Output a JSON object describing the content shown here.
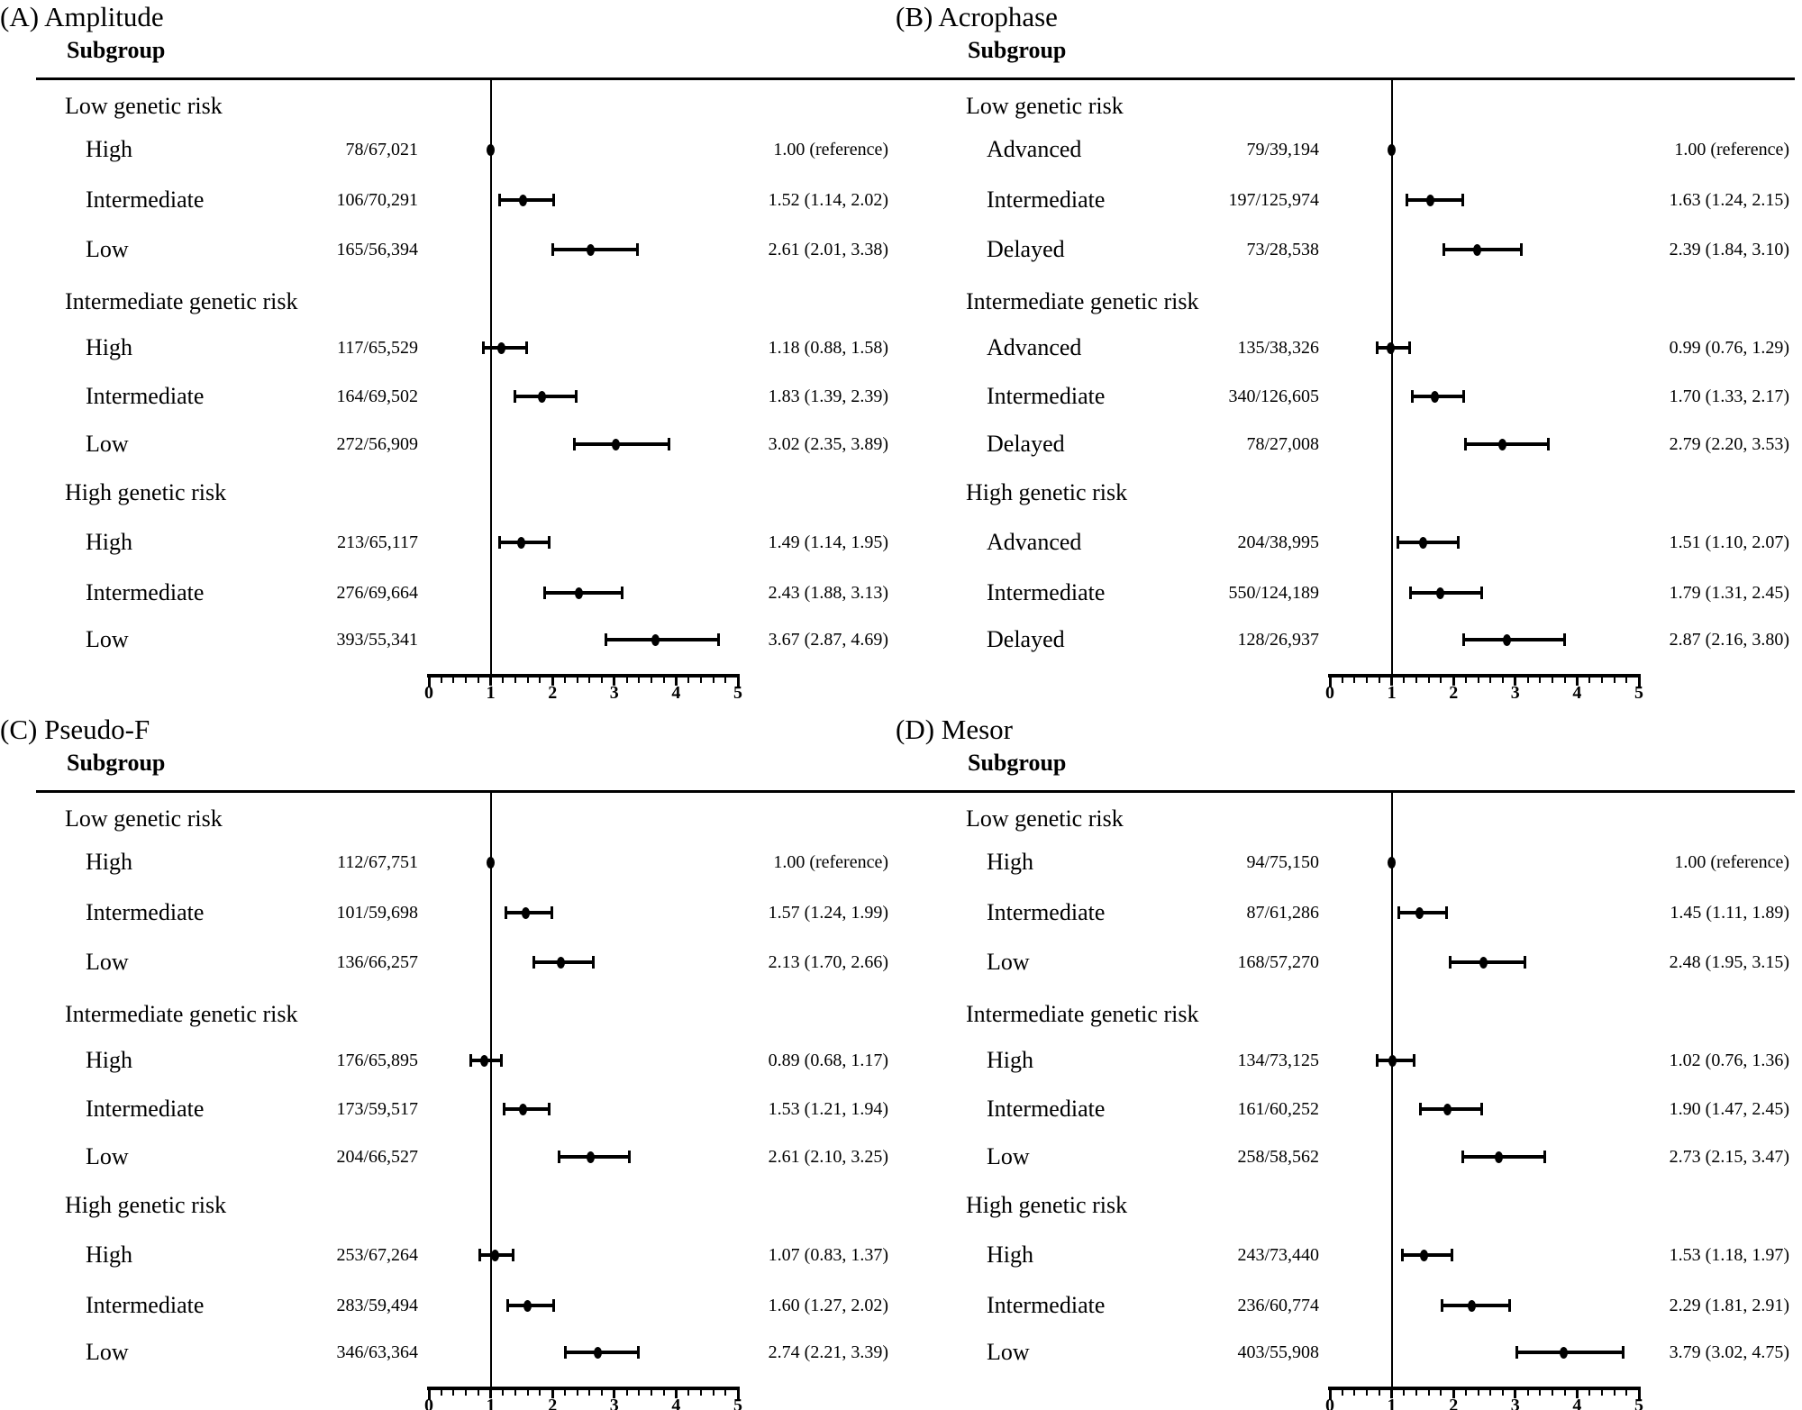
{
  "figure": {
    "background": "#ffffff",
    "ink_color": "#000000"
  },
  "chart_data": {
    "type": "forest",
    "column_header": "Subgroup",
    "axis": {
      "min": 0,
      "max": 5,
      "tick_labels": [
        "0",
        "1",
        "2",
        "3",
        "4",
        "5"
      ],
      "minor_step": 0.2,
      "reference_line": 1
    },
    "panels": [
      {
        "id": "a",
        "title": "(A) Amplitude",
        "groups": [
          {
            "label": "Low genetic risk",
            "rows": [
              {
                "label": "High",
                "count": "78/67,021",
                "est": 1.0,
                "lo": null,
                "hi": null,
                "text": "1.00 (reference)"
              },
              {
                "label": "Intermediate",
                "count": "106/70,291",
                "est": 1.52,
                "lo": 1.14,
                "hi": 2.02,
                "text": "1.52 (1.14, 2.02)"
              },
              {
                "label": "Low",
                "count": "165/56,394",
                "est": 2.61,
                "lo": 2.01,
                "hi": 3.38,
                "text": "2.61 (2.01, 3.38)"
              }
            ]
          },
          {
            "label": "Intermediate genetic risk",
            "rows": [
              {
                "label": "High",
                "count": "117/65,529",
                "est": 1.18,
                "lo": 0.88,
                "hi": 1.58,
                "text": "1.18 (0.88, 1.58)"
              },
              {
                "label": "Intermediate",
                "count": "164/69,502",
                "est": 1.83,
                "lo": 1.39,
                "hi": 2.39,
                "text": "1.83 (1.39, 2.39)"
              },
              {
                "label": "Low",
                "count": "272/56,909",
                "est": 3.02,
                "lo": 2.35,
                "hi": 3.89,
                "text": "3.02 (2.35, 3.89)"
              }
            ]
          },
          {
            "label": "High genetic risk",
            "rows": [
              {
                "label": "High",
                "count": "213/65,117",
                "est": 1.49,
                "lo": 1.14,
                "hi": 1.95,
                "text": "1.49 (1.14, 1.95)"
              },
              {
                "label": "Intermediate",
                "count": "276/69,664",
                "est": 2.43,
                "lo": 1.88,
                "hi": 3.13,
                "text": "2.43 (1.88, 3.13)"
              },
              {
                "label": "Low",
                "count": "393/55,341",
                "est": 3.67,
                "lo": 2.87,
                "hi": 4.69,
                "text": "3.67 (2.87, 4.69)"
              }
            ]
          }
        ]
      },
      {
        "id": "b",
        "title": "(B) Acrophase",
        "groups": [
          {
            "label": "Low genetic risk",
            "rows": [
              {
                "label": "Advanced",
                "count": "79/39,194",
                "est": 1.0,
                "lo": null,
                "hi": null,
                "text": "1.00 (reference)"
              },
              {
                "label": "Intermediate",
                "count": "197/125,974",
                "est": 1.63,
                "lo": 1.24,
                "hi": 2.15,
                "text": "1.63 (1.24, 2.15)"
              },
              {
                "label": "Delayed",
                "count": "73/28,538",
                "est": 2.39,
                "lo": 1.84,
                "hi": 3.1,
                "text": "2.39 (1.84, 3.10)"
              }
            ]
          },
          {
            "label": "Intermediate genetic risk",
            "rows": [
              {
                "label": "Advanced",
                "count": "135/38,326",
                "est": 0.99,
                "lo": 0.76,
                "hi": 1.29,
                "text": "0.99 (0.76, 1.29)"
              },
              {
                "label": "Intermediate",
                "count": "340/126,605",
                "est": 1.7,
                "lo": 1.33,
                "hi": 2.17,
                "text": "1.70 (1.33, 2.17)"
              },
              {
                "label": "Delayed",
                "count": "78/27,008",
                "est": 2.79,
                "lo": 2.2,
                "hi": 3.53,
                "text": "2.79 (2.20, 3.53)"
              }
            ]
          },
          {
            "label": "High genetic risk",
            "rows": [
              {
                "label": "Advanced",
                "count": "204/38,995",
                "est": 1.51,
                "lo": 1.1,
                "hi": 2.07,
                "text": "1.51 (1.10, 2.07)"
              },
              {
                "label": "Intermediate",
                "count": "550/124,189",
                "est": 1.79,
                "lo": 1.31,
                "hi": 2.45,
                "text": "1.79 (1.31, 2.45)"
              },
              {
                "label": "Delayed",
                "count": "128/26,937",
                "est": 2.87,
                "lo": 2.16,
                "hi": 3.8,
                "text": "2.87 (2.16, 3.80)"
              }
            ]
          }
        ]
      },
      {
        "id": "c",
        "title": "(C) Pseudo-F",
        "groups": [
          {
            "label": "Low genetic risk",
            "rows": [
              {
                "label": "High",
                "count": "112/67,751",
                "est": 1.0,
                "lo": null,
                "hi": null,
                "text": "1.00 (reference)"
              },
              {
                "label": "Intermediate",
                "count": "101/59,698",
                "est": 1.57,
                "lo": 1.24,
                "hi": 1.99,
                "text": "1.57 (1.24, 1.99)"
              },
              {
                "label": "Low",
                "count": "136/66,257",
                "est": 2.13,
                "lo": 1.7,
                "hi": 2.66,
                "text": "2.13 (1.70, 2.66)"
              }
            ]
          },
          {
            "label": "Intermediate genetic risk",
            "rows": [
              {
                "label": "High",
                "count": "176/65,895",
                "est": 0.89,
                "lo": 0.68,
                "hi": 1.17,
                "text": "0.89 (0.68, 1.17)"
              },
              {
                "label": "Intermediate",
                "count": "173/59,517",
                "est": 1.53,
                "lo": 1.21,
                "hi": 1.94,
                "text": "1.53 (1.21, 1.94)"
              },
              {
                "label": "Low",
                "count": "204/66,527",
                "est": 2.61,
                "lo": 2.1,
                "hi": 3.25,
                "text": "2.61 (2.10, 3.25)"
              }
            ]
          },
          {
            "label": "High genetic risk",
            "rows": [
              {
                "label": "High",
                "count": "253/67,264",
                "est": 1.07,
                "lo": 0.83,
                "hi": 1.37,
                "text": "1.07 (0.83, 1.37)"
              },
              {
                "label": "Intermediate",
                "count": "283/59,494",
                "est": 1.6,
                "lo": 1.27,
                "hi": 2.02,
                "text": "1.60 (1.27, 2.02)"
              },
              {
                "label": "Low",
                "count": "346/63,364",
                "est": 2.74,
                "lo": 2.21,
                "hi": 3.39,
                "text": "2.74 (2.21, 3.39)"
              }
            ]
          }
        ]
      },
      {
        "id": "d",
        "title": "(D) Mesor",
        "groups": [
          {
            "label": "Low genetic risk",
            "rows": [
              {
                "label": "High",
                "count": "94/75,150",
                "est": 1.0,
                "lo": null,
                "hi": null,
                "text": "1.00 (reference)"
              },
              {
                "label": "Intermediate",
                "count": "87/61,286",
                "est": 1.45,
                "lo": 1.11,
                "hi": 1.89,
                "text": "1.45 (1.11, 1.89)"
              },
              {
                "label": "Low",
                "count": "168/57,270",
                "est": 2.48,
                "lo": 1.95,
                "hi": 3.15,
                "text": "2.48 (1.95, 3.15)"
              }
            ]
          },
          {
            "label": "Intermediate genetic risk",
            "rows": [
              {
                "label": "High",
                "count": "134/73,125",
                "est": 1.02,
                "lo": 0.76,
                "hi": 1.36,
                "text": "1.02 (0.76, 1.36)"
              },
              {
                "label": "Intermediate",
                "count": "161/60,252",
                "est": 1.9,
                "lo": 1.47,
                "hi": 2.45,
                "text": "1.90 (1.47, 2.45)"
              },
              {
                "label": "Low",
                "count": "258/58,562",
                "est": 2.73,
                "lo": 2.15,
                "hi": 3.47,
                "text": "2.73 (2.15, 3.47)"
              }
            ]
          },
          {
            "label": "High genetic risk",
            "rows": [
              {
                "label": "High",
                "count": "243/73,440",
                "est": 1.53,
                "lo": 1.18,
                "hi": 1.97,
                "text": "1.53 (1.18, 1.97)"
              },
              {
                "label": "Intermediate",
                "count": "236/60,774",
                "est": 2.29,
                "lo": 1.81,
                "hi": 2.91,
                "text": "2.29 (1.81, 2.91)"
              },
              {
                "label": "Low",
                "count": "403/55,908",
                "est": 3.79,
                "lo": 3.02,
                "hi": 4.75,
                "text": "3.79 (3.02, 4.75)"
              }
            ]
          }
        ]
      }
    ]
  }
}
